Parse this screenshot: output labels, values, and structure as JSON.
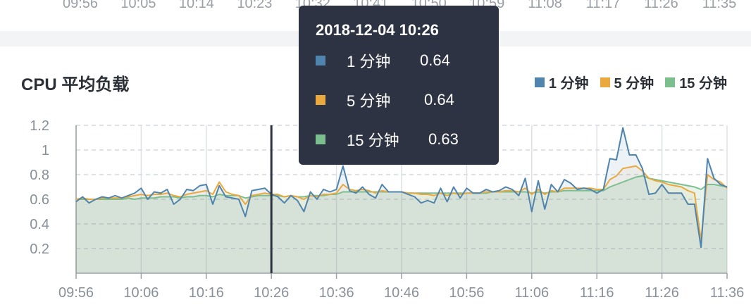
{
  "top_axis": {
    "labels": [
      "09:56",
      "10:05",
      "10:14",
      "10:23",
      "10:32",
      "10:41",
      "10:50",
      "10:59",
      "11:08",
      "11:17",
      "11:26",
      "11:35"
    ]
  },
  "card": {
    "title": "CPU 平均负载"
  },
  "colors": {
    "one": "#4e84ad",
    "five": "#e9a93f",
    "fifteen": "#7cbf8f",
    "tooltip_bg": "#2d3342"
  },
  "tooltip": {
    "title": "2018-12-04 10:26",
    "rows": [
      {
        "name": "1 分钟",
        "value": "0.64",
        "color": "#4e84ad"
      },
      {
        "name": "5 分钟",
        "value": "0.64",
        "color": "#e9a93f"
      },
      {
        "name": "15 分钟",
        "value": "0.63",
        "color": "#7cbf8f"
      }
    ]
  },
  "chart_data": {
    "type": "area",
    "title": "CPU 平均负载",
    "x_tick_labels": [
      "09:56",
      "10:06",
      "10:16",
      "10:26",
      "10:36",
      "10:46",
      "10:56",
      "11:06",
      "11:16",
      "11:26",
      "11:36"
    ],
    "x_start": "09:56",
    "x_end": "11:36",
    "ylim": [
      0,
      1.2
    ],
    "y_ticks": [
      0.2,
      0.4,
      0.6,
      0.8,
      1,
      1.2
    ],
    "y_tick_labels": [
      "0.2",
      "0.4",
      "0.6",
      "0.8",
      "1",
      "1.2"
    ],
    "grid": true,
    "legend_position": "top-right",
    "cursor_time": "10:26",
    "x_minutes": [
      0,
      1,
      2,
      3,
      4,
      5,
      6,
      7,
      8,
      9,
      10,
      11,
      12,
      13,
      14,
      15,
      16,
      17,
      18,
      19,
      20,
      21,
      22,
      23,
      24,
      25,
      26,
      27,
      28,
      29,
      30,
      31,
      32,
      33,
      34,
      35,
      36,
      37,
      38,
      39,
      40,
      41,
      42,
      43,
      44,
      45,
      46,
      47,
      48,
      49,
      50,
      51,
      52,
      53,
      54,
      55,
      56,
      57,
      58,
      59,
      60,
      61,
      62,
      63,
      64,
      65,
      66,
      67,
      68,
      69,
      70,
      71,
      72,
      73,
      74,
      75,
      76,
      77,
      78,
      79,
      80,
      81,
      82,
      83,
      84,
      85,
      86,
      87,
      88,
      89,
      90,
      91,
      92,
      93,
      94,
      95,
      96,
      97,
      98,
      99,
      100
    ],
    "series": [
      {
        "name": "1 分钟",
        "color": "#4e84ad",
        "values": [
          0.58,
          0.62,
          0.57,
          0.6,
          0.62,
          0.61,
          0.63,
          0.61,
          0.63,
          0.65,
          0.69,
          0.6,
          0.66,
          0.65,
          0.68,
          0.56,
          0.6,
          0.68,
          0.67,
          0.71,
          0.72,
          0.56,
          0.71,
          0.62,
          0.61,
          0.6,
          0.46,
          0.67,
          0.68,
          0.69,
          0.64,
          0.62,
          0.57,
          0.63,
          0.59,
          0.5,
          0.66,
          0.6,
          0.68,
          0.66,
          0.68,
          0.87,
          0.67,
          0.65,
          0.7,
          0.64,
          0.61,
          0.72,
          0.66,
          0.66,
          0.66,
          0.64,
          0.62,
          0.57,
          0.59,
          0.57,
          0.69,
          0.58,
          0.7,
          0.61,
          0.69,
          0.65,
          0.65,
          0.68,
          0.66,
          0.67,
          0.7,
          0.68,
          0.63,
          0.77,
          0.5,
          0.75,
          0.52,
          0.72,
          0.66,
          0.76,
          0.73,
          0.68,
          0.69,
          0.68,
          0.65,
          0.68,
          0.93,
          0.92,
          1.18,
          0.96,
          0.96,
          0.85,
          0.64,
          0.65,
          0.72,
          0.65,
          0.65,
          0.65,
          0.56,
          0.56,
          0.21,
          0.93,
          0.77,
          0.72,
          0.7
        ]
      },
      {
        "name": "5 分钟",
        "color": "#e9a93f",
        "values": [
          0.6,
          0.61,
          0.6,
          0.6,
          0.61,
          0.61,
          0.61,
          0.61,
          0.62,
          0.63,
          0.64,
          0.63,
          0.64,
          0.64,
          0.65,
          0.63,
          0.62,
          0.64,
          0.65,
          0.66,
          0.67,
          0.64,
          0.74,
          0.66,
          0.64,
          0.63,
          0.56,
          0.63,
          0.64,
          0.65,
          0.64,
          0.64,
          0.62,
          0.63,
          0.62,
          0.6,
          0.63,
          0.62,
          0.64,
          0.64,
          0.65,
          0.72,
          0.68,
          0.67,
          0.68,
          0.67,
          0.65,
          0.67,
          0.66,
          0.66,
          0.66,
          0.65,
          0.65,
          0.64,
          0.64,
          0.63,
          0.65,
          0.63,
          0.65,
          0.64,
          0.65,
          0.65,
          0.65,
          0.66,
          0.66,
          0.66,
          0.67,
          0.67,
          0.66,
          0.69,
          0.64,
          0.68,
          0.64,
          0.67,
          0.66,
          0.69,
          0.69,
          0.69,
          0.69,
          0.69,
          0.68,
          0.68,
          0.76,
          0.79,
          0.85,
          0.86,
          0.87,
          0.83,
          0.77,
          0.75,
          0.74,
          0.72,
          0.71,
          0.7,
          0.67,
          0.65,
          0.27,
          0.8,
          0.76,
          0.74,
          0.69
        ]
      },
      {
        "name": "15 分钟",
        "color": "#7cbf8f",
        "values": [
          0.6,
          0.6,
          0.6,
          0.6,
          0.6,
          0.6,
          0.6,
          0.6,
          0.61,
          0.6,
          0.61,
          0.61,
          0.61,
          0.62,
          0.62,
          0.62,
          0.61,
          0.62,
          0.62,
          0.63,
          0.63,
          0.62,
          0.64,
          0.63,
          0.63,
          0.63,
          0.61,
          0.62,
          0.63,
          0.63,
          0.63,
          0.63,
          0.62,
          0.63,
          0.62,
          0.62,
          0.63,
          0.63,
          0.63,
          0.64,
          0.64,
          0.66,
          0.66,
          0.66,
          0.66,
          0.66,
          0.66,
          0.66,
          0.66,
          0.66,
          0.66,
          0.65,
          0.65,
          0.65,
          0.65,
          0.65,
          0.65,
          0.65,
          0.65,
          0.65,
          0.65,
          0.65,
          0.65,
          0.65,
          0.66,
          0.66,
          0.66,
          0.66,
          0.66,
          0.66,
          0.65,
          0.66,
          0.65,
          0.66,
          0.66,
          0.67,
          0.67,
          0.67,
          0.67,
          0.67,
          0.67,
          0.67,
          0.7,
          0.72,
          0.74,
          0.76,
          0.78,
          0.79,
          0.77,
          0.76,
          0.75,
          0.74,
          0.73,
          0.72,
          0.71,
          0.7,
          0.68,
          0.72,
          0.72,
          0.71,
          0.7
        ]
      }
    ]
  }
}
